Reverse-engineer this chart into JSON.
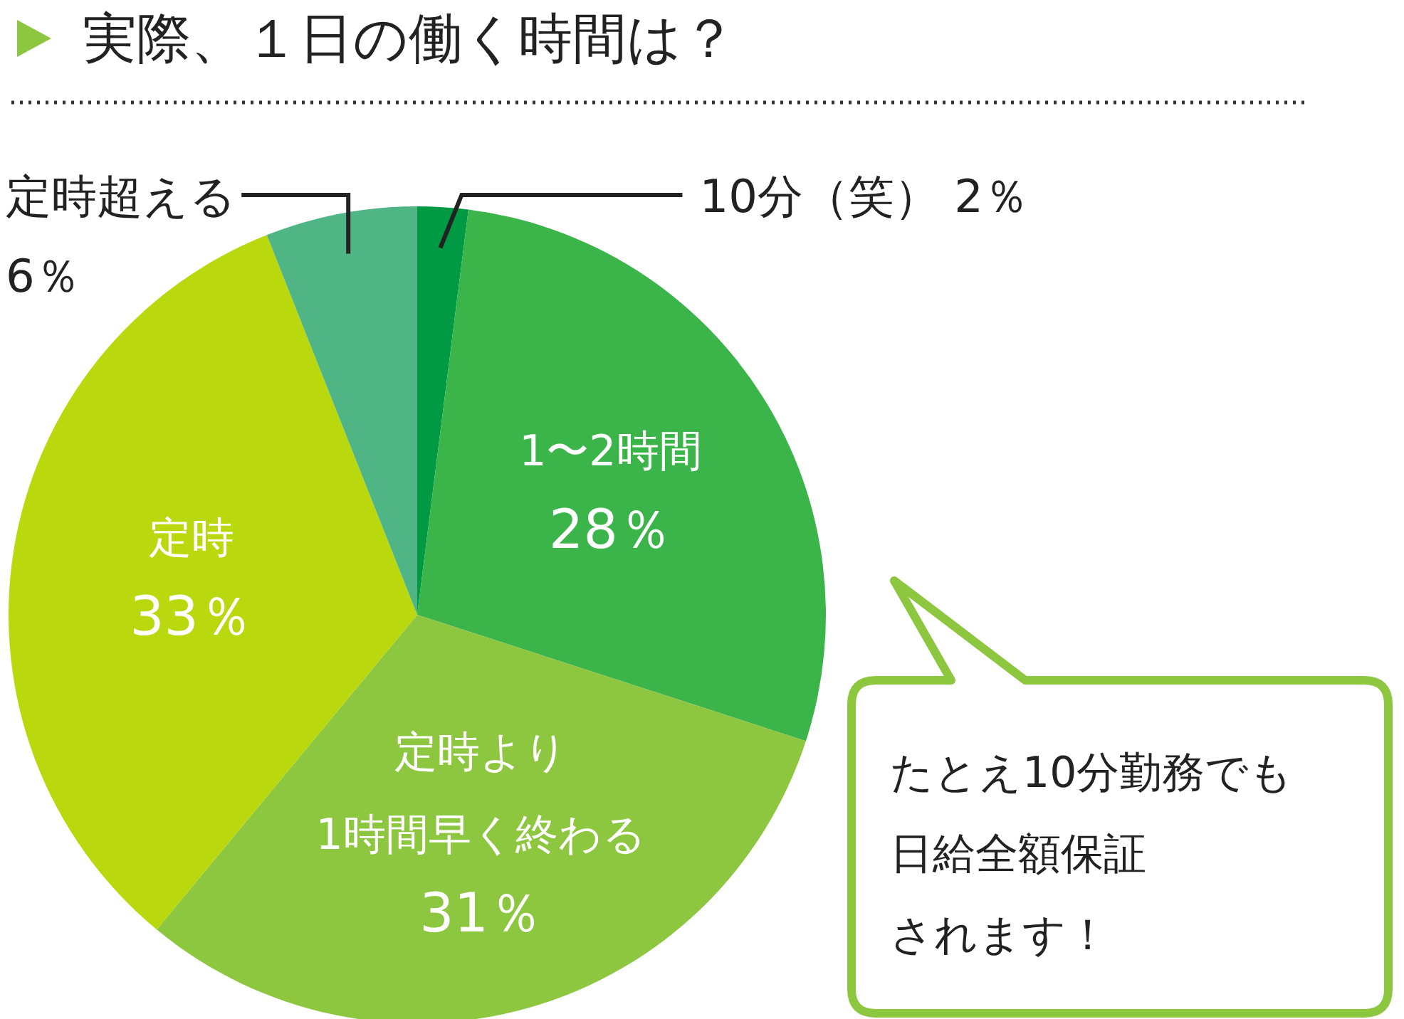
{
  "chart_data": {
    "type": "pie",
    "title": "実際、１日の働く時間は？",
    "categories": [
      "10分（笑）",
      "1〜2時間",
      "定時より\n1時間早く終わる",
      "定時",
      "定時超える"
    ],
    "values": [
      2,
      28,
      31,
      33,
      6
    ],
    "value_labels": [
      "2％",
      "28％",
      "31％",
      "33％",
      "6％"
    ],
    "colors": [
      "#009944",
      "#3bb44a",
      "#8dc63f",
      "#b9d80e",
      "#4fb584"
    ],
    "annotations": [
      "たとえ10分勤務でも",
      "日給全額保証",
      "されます！"
    ]
  }
}
